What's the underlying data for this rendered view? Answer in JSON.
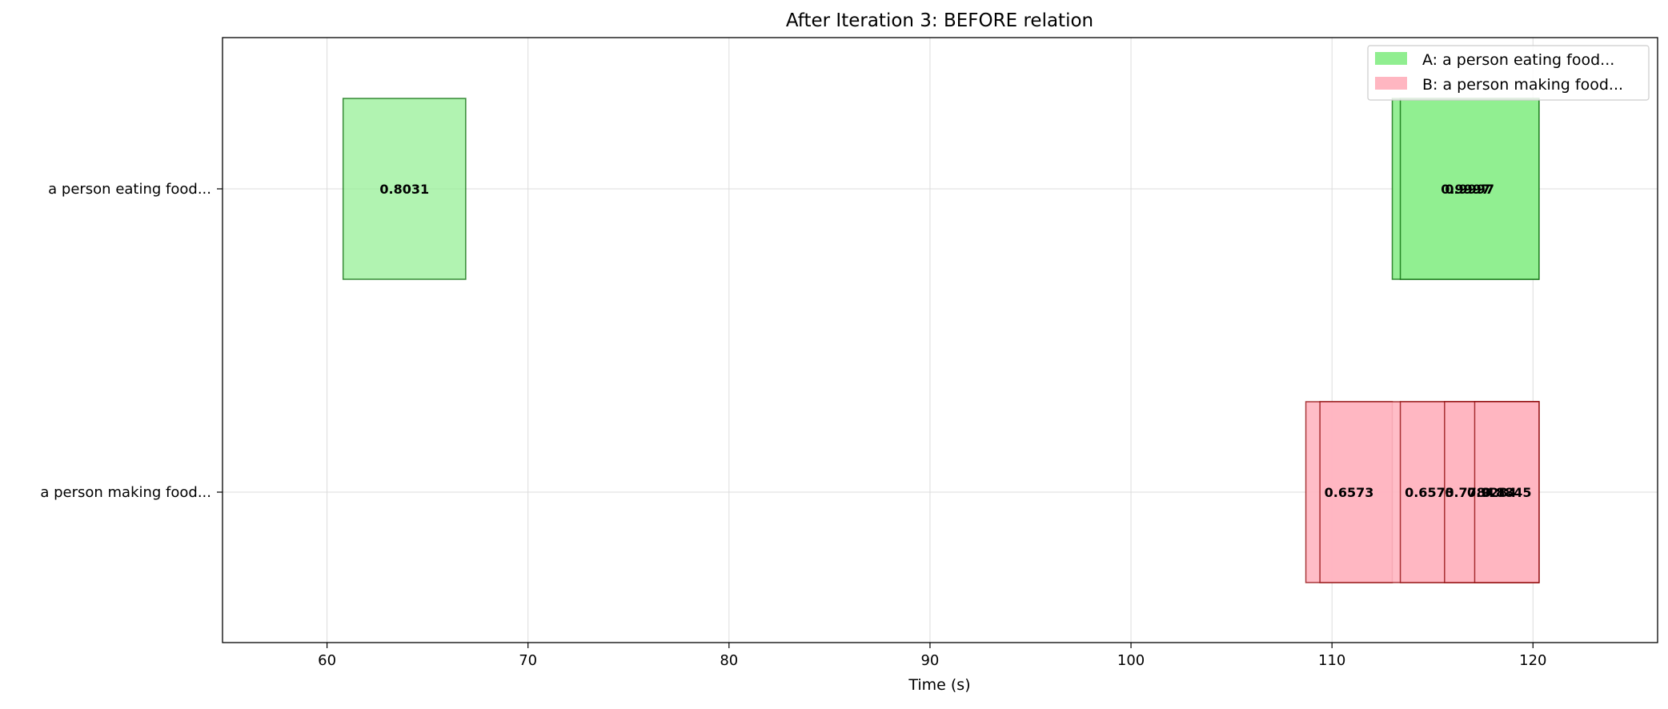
{
  "chart_data": {
    "type": "bar",
    "subtype": "horizontal-timeline",
    "title": "After Iteration 3: BEFORE relation",
    "xlabel": "Time (s)",
    "ylabel": "",
    "xlim": [
      54.8,
      126.2
    ],
    "xticks": [
      60,
      70,
      80,
      90,
      100,
      110,
      120
    ],
    "grid": true,
    "legend_position": "top-right",
    "legend": [
      {
        "label": "A: a person eating food...",
        "color": "#90EE90"
      },
      {
        "label": "B: a person making food...",
        "color": "#FFB6C1"
      }
    ],
    "rows": [
      {
        "label": "a person eating food...",
        "fill": "#90EE90",
        "stroke": "#006400",
        "segments": [
          {
            "start": 60.8,
            "end": 66.9,
            "score": "0.8031",
            "opacity": 0.7
          },
          {
            "start": 113.0,
            "end": 120.3,
            "score": "0.9997",
            "opacity": 0.95
          },
          {
            "start": 113.4,
            "end": 120.3,
            "score": "0.9997",
            "opacity": 0.95
          }
        ]
      },
      {
        "label": "a person making food...",
        "fill": "#FFB6C1",
        "stroke": "#8B0000",
        "segments": [
          {
            "start": 108.7,
            "end": 113.0,
            "score": "0.6573",
            "opacity": 0.9
          },
          {
            "start": 109.4,
            "end": 120.3,
            "score": "0.6573",
            "opacity": 0.9
          },
          {
            "start": 113.4,
            "end": 120.3,
            "score": "0.7784",
            "opacity": 0.9
          },
          {
            "start": 115.6,
            "end": 120.3,
            "score": "0.9284",
            "opacity": 0.9
          },
          {
            "start": 117.1,
            "end": 120.3,
            "score": "0.8845",
            "opacity": 0.9
          }
        ]
      }
    ]
  }
}
